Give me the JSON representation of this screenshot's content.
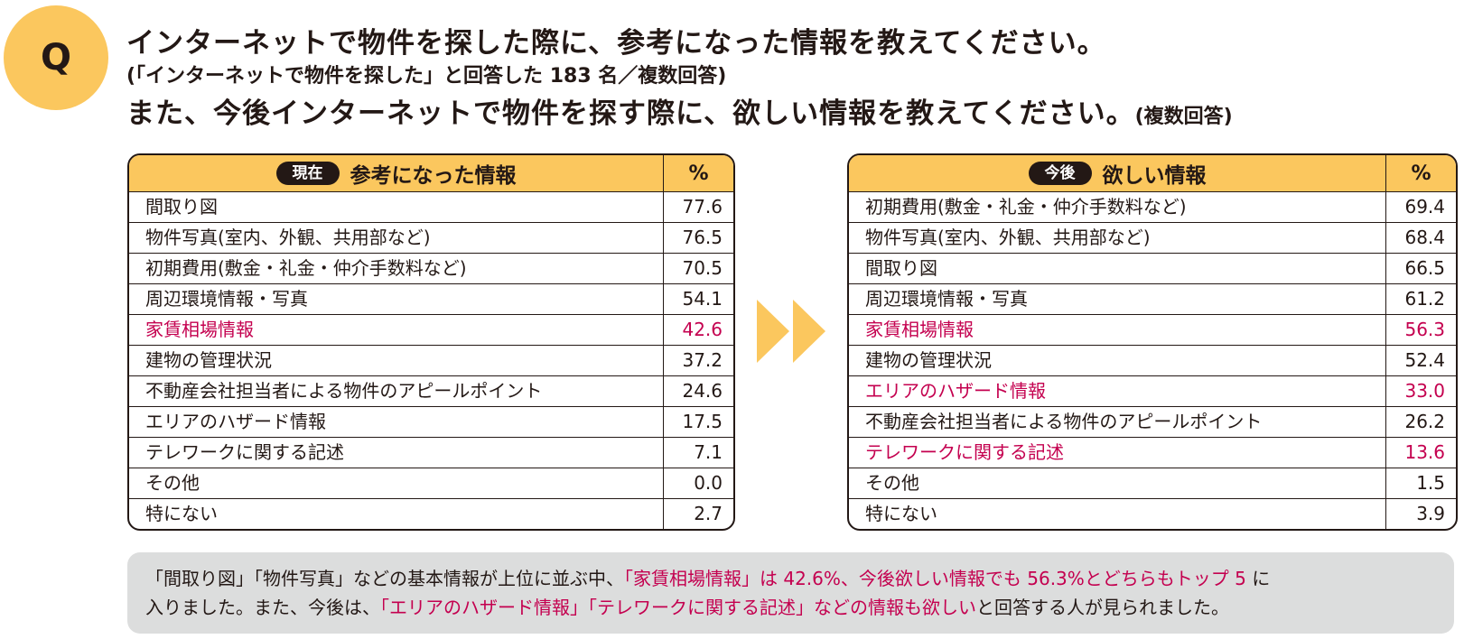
{
  "question": {
    "badge": "Q",
    "line1": "インターネットで物件を探した際に、参考になった情報を教えてください。",
    "line2": "(「インターネットで物件を探した」と回答した 183 名／複数回答)",
    "line3_main": "また、今後インターネットで物件を探す際に、欲しい情報を教えてください。",
    "line3_suffix": "(複数回答)"
  },
  "current_table": {
    "tag": "現在",
    "title": "参考になった情報",
    "pct_header": "%",
    "rows": [
      {
        "label": "間取り図",
        "value": "77.6"
      },
      {
        "label": "物件写真(室内、外観、共用部など)",
        "value": "76.5"
      },
      {
        "label": "初期費用(敷金・礼金・仲介手数料など)",
        "value": "70.5"
      },
      {
        "label": "周辺環境情報・写真",
        "value": "54.1"
      },
      {
        "label": "家賃相場情報",
        "value": "42.6"
      },
      {
        "label": "建物の管理状況",
        "value": "37.2"
      },
      {
        "label": "不動産会社担当者による物件のアピールポイント",
        "value": "24.6"
      },
      {
        "label": "エリアのハザード情報",
        "value": "17.5"
      },
      {
        "label": "テレワークに関する記述",
        "value": "7.1"
      },
      {
        "label": "その他",
        "value": "0.0"
      },
      {
        "label": "特にない",
        "value": "2.7"
      }
    ]
  },
  "future_table": {
    "tag": "今後",
    "title": "欲しい情報",
    "pct_header": "%",
    "rows": [
      {
        "label": "初期費用(敷金・礼金・仲介手数料など)",
        "value": "69.4"
      },
      {
        "label": "物件写真(室内、外観、共用部など)",
        "value": "68.4"
      },
      {
        "label": "間取り図",
        "value": "66.5"
      },
      {
        "label": "周辺環境情報・写真",
        "value": "61.2"
      },
      {
        "label": "家賃相場情報",
        "value": "56.3"
      },
      {
        "label": "建物の管理状況",
        "value": "52.4"
      },
      {
        "label": "エリアのハザード情報",
        "value": "33.0"
      },
      {
        "label": "不動産会社担当者による物件のアピールポイント",
        "value": "26.2"
      },
      {
        "label": "テレワークに関する記述",
        "value": "13.6"
      },
      {
        "label": "その他",
        "value": "1.5"
      },
      {
        "label": "特にない",
        "value": "3.9"
      }
    ]
  },
  "colors": {
    "accent_yellow": "#fbc75e",
    "highlight_red": "#c4004f",
    "text_dark": "#231815",
    "note_bg": "#dcdddd"
  },
  "icons": {
    "arrow": "double-right-arrow-icon"
  },
  "note": {
    "line1_a": "「間取り図」「物件写真」などの基本情報が上位に並ぶ中、",
    "line1_b": "「家賃相場情報」は 42.6%、今後欲しい情報でも 56.3%とどちらもトップ 5",
    "line1_c": " に",
    "line2_a": "入りました。また、今後は、",
    "line2_b": "「エリアのハザード情報」「テレワークに関する記述」などの情報も欲しい",
    "line2_c": "と回答する人が見られました。"
  }
}
